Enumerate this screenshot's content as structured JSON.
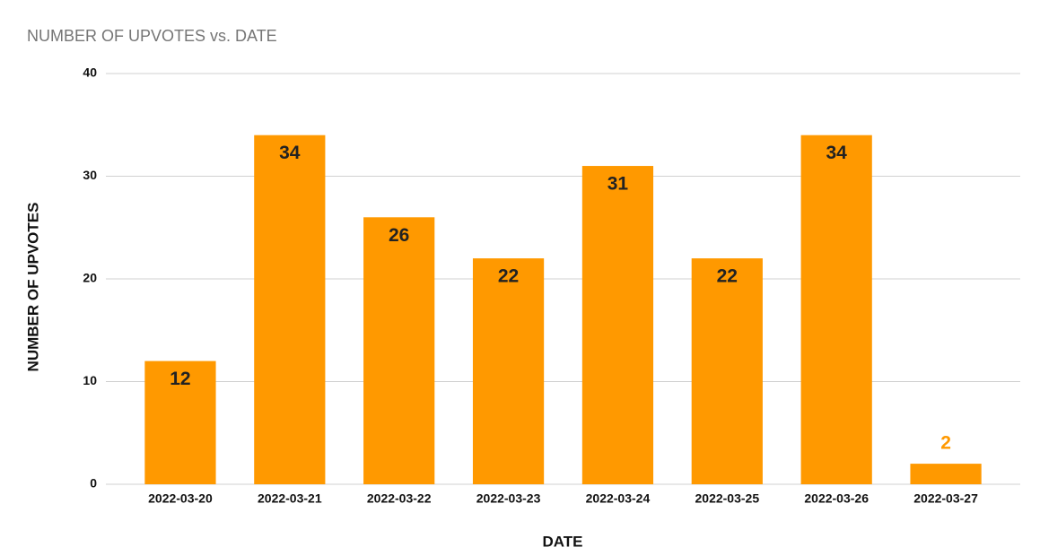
{
  "chart_data": {
    "type": "bar",
    "title": "NUMBER OF UPVOTES vs. DATE",
    "x_label": "DATE",
    "y_label": "NUMBER OF UPVOTES",
    "categories": [
      "2022-03-20",
      "2022-03-21",
      "2022-03-22",
      "2022-03-23",
      "2022-03-24",
      "2022-03-25",
      "2022-03-26",
      "2022-03-27"
    ],
    "values": [
      12,
      34,
      26,
      22,
      31,
      22,
      34,
      2
    ],
    "color": "#ff9900",
    "ylim": [
      0,
      40
    ],
    "yticks": [
      0,
      10,
      20,
      30,
      40
    ],
    "grid": true
  }
}
